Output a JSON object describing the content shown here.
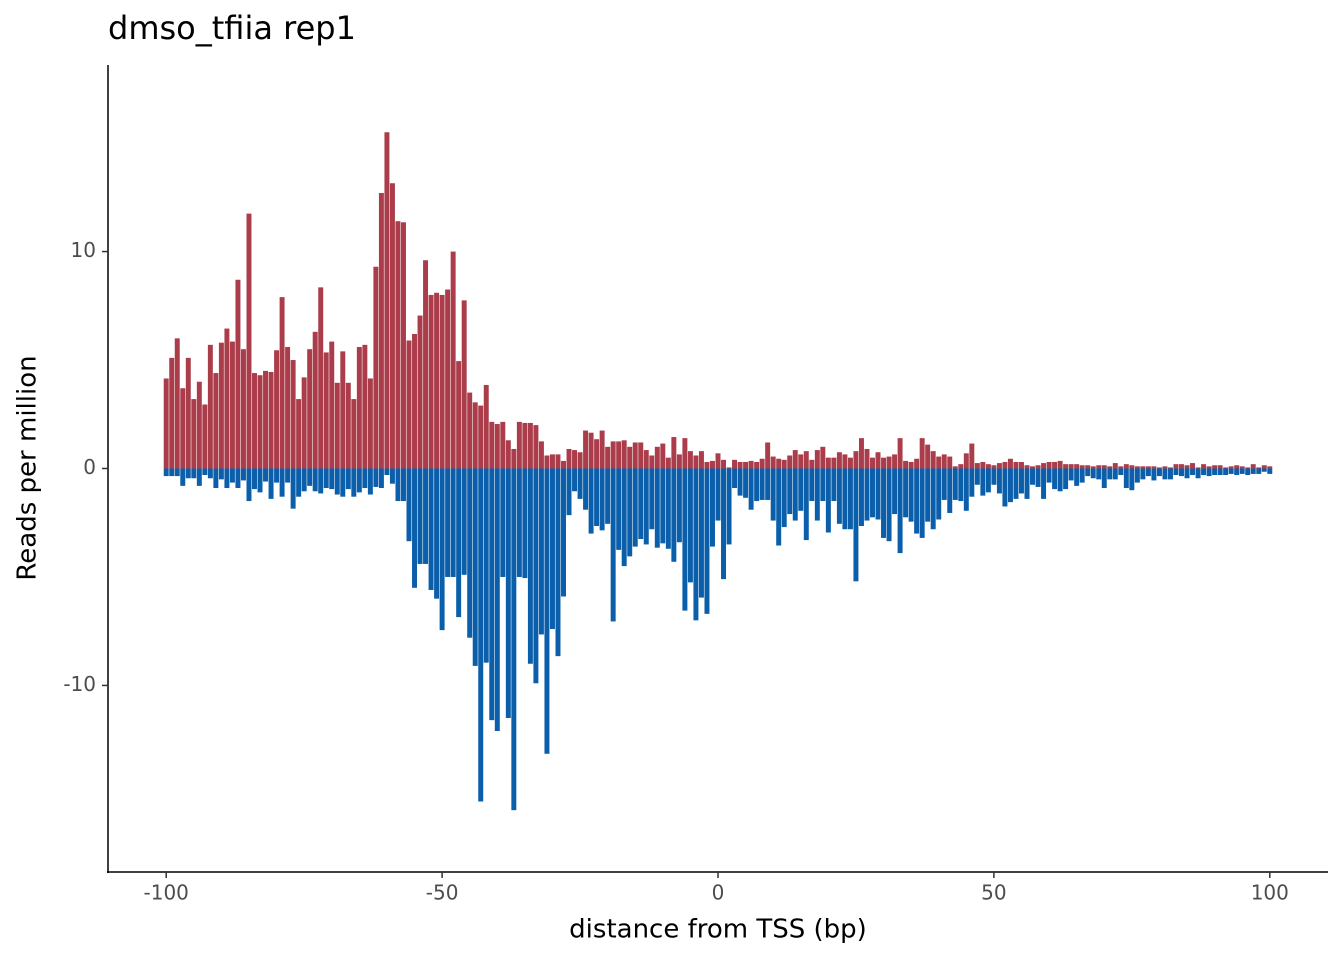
{
  "chart_data": {
    "type": "bar",
    "title": "dmso_tfiia rep1",
    "x_label": "distance from TSS (bp)",
    "y_label": "Reads per million",
    "x": [
      -100,
      -99,
      -98,
      -97,
      -96,
      -95,
      -94,
      -93,
      -92,
      -91,
      -90,
      -89,
      -88,
      -87,
      -86,
      -85,
      -84,
      -83,
      -82,
      -81,
      -80,
      -79,
      -78,
      -77,
      -76,
      -75,
      -74,
      -73,
      -72,
      -71,
      -70,
      -69,
      -68,
      -67,
      -66,
      -65,
      -64,
      -63,
      -62,
      -61,
      -60,
      -59,
      -58,
      -57,
      -56,
      -55,
      -54,
      -53,
      -52,
      -51,
      -50,
      -49,
      -48,
      -47,
      -46,
      -45,
      -44,
      -43,
      -42,
      -41,
      -40,
      -39,
      -38,
      -37,
      -36,
      -35,
      -34,
      -33,
      -32,
      -31,
      -30,
      -29,
      -28,
      -27,
      -26,
      -25,
      -24,
      -23,
      -22,
      -21,
      -20,
      -19,
      -18,
      -17,
      -16,
      -15,
      -14,
      -13,
      -12,
      -11,
      -10,
      -9,
      -8,
      -7,
      -6,
      -5,
      -4,
      -3,
      -2,
      -1,
      0,
      1,
      2,
      3,
      4,
      5,
      6,
      7,
      8,
      9,
      10,
      11,
      12,
      13,
      14,
      15,
      16,
      17,
      18,
      19,
      20,
      21,
      22,
      23,
      24,
      25,
      26,
      27,
      28,
      29,
      30,
      31,
      32,
      33,
      34,
      35,
      36,
      37,
      38,
      39,
      40,
      41,
      42,
      43,
      44,
      45,
      46,
      47,
      48,
      49,
      50,
      51,
      52,
      53,
      54,
      55,
      56,
      57,
      58,
      59,
      60,
      61,
      62,
      63,
      64,
      65,
      66,
      67,
      68,
      69,
      70,
      71,
      72,
      73,
      74,
      75,
      76,
      77,
      78,
      79,
      80,
      81,
      82,
      83,
      84,
      85,
      86,
      87,
      88,
      89,
      90,
      91,
      92,
      93,
      94,
      95,
      96,
      97,
      98,
      99,
      100
    ],
    "series": [
      {
        "color": "#ab3d4b",
        "values": [
          4.15,
          5.1,
          6.0,
          3.7,
          5.1,
          3.2,
          4.0,
          2.95,
          5.7,
          4.4,
          5.8,
          6.45,
          5.85,
          8.7,
          5.5,
          11.75,
          4.4,
          4.3,
          4.5,
          4.45,
          5.45,
          7.9,
          5.6,
          5.0,
          3.2,
          4.2,
          5.5,
          6.3,
          8.35,
          5.35,
          5.85,
          3.95,
          5.4,
          3.95,
          3.2,
          5.6,
          5.7,
          4.15,
          9.3,
          12.7,
          15.5,
          13.15,
          11.4,
          11.35,
          5.9,
          6.2,
          7.05,
          9.6,
          8.0,
          8.1,
          8.0,
          8.25,
          10.0,
          4.95,
          7.75,
          3.5,
          3.05,
          2.9,
          3.85,
          2.15,
          2.05,
          2.15,
          1.3,
          0.9,
          2.15,
          2.1,
          2.1,
          2.0,
          1.25,
          0.6,
          0.65,
          0.65,
          0.35,
          0.9,
          0.85,
          0.75,
          1.75,
          1.65,
          1.35,
          1.75,
          1.0,
          1.25,
          1.25,
          1.3,
          1.0,
          1.2,
          1.2,
          0.85,
          0.6,
          1.0,
          1.15,
          0.5,
          1.45,
          0.65,
          1.4,
          0.8,
          0.6,
          0.8,
          0.3,
          0.35,
          0.7,
          0.4,
          0.05,
          0.4,
          0.3,
          0.3,
          0.35,
          0.3,
          0.45,
          1.2,
          0.55,
          0.45,
          0.4,
          0.6,
          0.85,
          0.65,
          0.8,
          0.4,
          0.85,
          1.0,
          0.5,
          0.5,
          0.75,
          0.65,
          0.5,
          0.8,
          1.4,
          0.9,
          0.5,
          0.75,
          0.5,
          0.55,
          0.65,
          1.4,
          0.35,
          0.3,
          0.45,
          1.4,
          1.1,
          0.8,
          0.55,
          0.65,
          0.55,
          0.1,
          0.2,
          0.7,
          1.15,
          0.25,
          0.3,
          0.2,
          0.15,
          0.25,
          0.3,
          0.45,
          0.3,
          0.3,
          0.15,
          0.1,
          0.15,
          0.25,
          0.3,
          0.3,
          0.35,
          0.2,
          0.2,
          0.2,
          0.15,
          0.15,
          0.1,
          0.15,
          0.15,
          0.1,
          0.25,
          0.1,
          0.2,
          0.15,
          0.1,
          0.1,
          0.1,
          0.1,
          0.05,
          0.1,
          0.05,
          0.2,
          0.2,
          0.15,
          0.25,
          0.05,
          0.2,
          0.1,
          0.15,
          0.15,
          0.05,
          0.1,
          0.15,
          0.1,
          0.05,
          0.2,
          0.05,
          0.15,
          0.1
        ]
      },
      {
        "color": "#0a5eaa",
        "values": [
          -0.35,
          -0.35,
          -0.35,
          -0.8,
          -0.45,
          -0.45,
          -0.8,
          -0.3,
          -0.45,
          -0.9,
          -0.5,
          -0.9,
          -0.65,
          -0.9,
          -0.55,
          -1.5,
          -0.95,
          -1.1,
          -0.6,
          -1.4,
          -0.65,
          -1.3,
          -0.65,
          -1.85,
          -1.3,
          -1.05,
          -0.8,
          -1.05,
          -1.15,
          -0.9,
          -0.95,
          -1.2,
          -1.3,
          -0.95,
          -1.3,
          -1.1,
          -0.9,
          -1.2,
          -0.85,
          -0.9,
          -0.3,
          -0.7,
          -1.5,
          -1.5,
          -3.35,
          -5.5,
          -4.4,
          -4.4,
          -5.6,
          -6.0,
          -7.45,
          -5.0,
          -5.0,
          -6.85,
          -4.9,
          -7.8,
          -9.1,
          -15.35,
          -8.95,
          -11.6,
          -12.1,
          -5.0,
          -11.5,
          -15.75,
          -5.0,
          -5.05,
          -9.0,
          -9.9,
          -7.65,
          -13.15,
          -7.4,
          -8.65,
          -5.9,
          -2.15,
          -1.05,
          -1.4,
          -1.9,
          -3.0,
          -2.65,
          -2.85,
          -2.55,
          -7.05,
          -3.75,
          -4.5,
          -4.05,
          -3.6,
          -3.25,
          -3.5,
          -2.8,
          -3.65,
          -3.45,
          -3.7,
          -4.3,
          -3.4,
          -6.55,
          -5.25,
          -7.0,
          -5.95,
          -6.7,
          -3.6,
          -2.4,
          -5.1,
          -3.5,
          -0.9,
          -1.25,
          -1.35,
          -1.9,
          -1.5,
          -1.45,
          -1.45,
          -2.4,
          -3.55,
          -2.7,
          -2.1,
          -2.4,
          -1.95,
          -3.3,
          -1.5,
          -2.4,
          -1.5,
          -2.95,
          -1.5,
          -2.55,
          -2.8,
          -2.8,
          -5.2,
          -2.65,
          -2.4,
          -2.25,
          -2.35,
          -3.2,
          -3.35,
          -2.1,
          -3.9,
          -2.25,
          -2.45,
          -3.0,
          -3.2,
          -2.45,
          -2.8,
          -2.35,
          -1.45,
          -2.05,
          -1.45,
          -1.5,
          -1.95,
          -1.3,
          -0.75,
          -1.25,
          -1.1,
          -0.75,
          -1.15,
          -1.75,
          -1.55,
          -1.4,
          -1.15,
          -1.4,
          -0.75,
          -0.85,
          -1.4,
          -0.65,
          -0.95,
          -1.05,
          -0.95,
          -0.55,
          -0.8,
          -0.65,
          -0.35,
          -0.45,
          -0.5,
          -0.9,
          -0.5,
          -0.5,
          -0.3,
          -0.9,
          -1.0,
          -0.65,
          -0.5,
          -0.35,
          -0.55,
          -0.35,
          -0.5,
          -0.5,
          -0.3,
          -0.35,
          -0.45,
          -0.3,
          -0.45,
          -0.3,
          -0.35,
          -0.3,
          -0.3,
          -0.3,
          -0.25,
          -0.3,
          -0.25,
          -0.3,
          -0.25,
          -0.25,
          -0.15,
          -0.25
        ]
      }
    ],
    "xlim": [
      -110.55,
      110.55
    ],
    "xticks": [
      -100,
      -50,
      0,
      50,
      100
    ],
    "ylim": [
      -18.6,
      18.6
    ],
    "yticks": [
      -10,
      0,
      10
    ],
    "grid": false
  }
}
